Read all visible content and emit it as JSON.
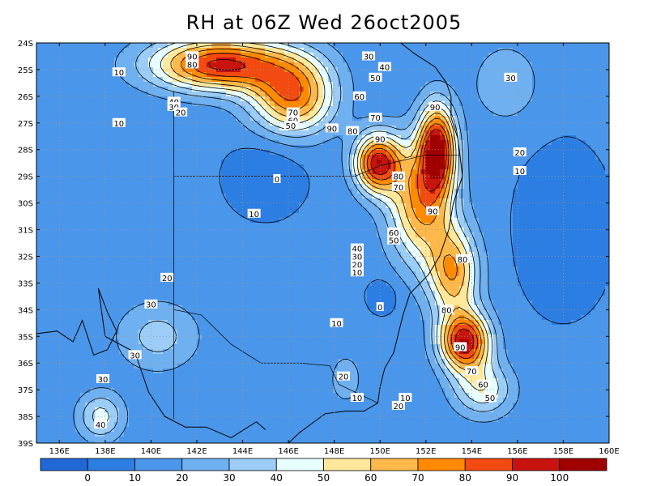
{
  "title": "RH at 06Z Wed 26oct2005",
  "map": {
    "lat_ticks": [
      "24S",
      "25S",
      "26S",
      "27S",
      "28S",
      "29S",
      "30S",
      "31S",
      "32S",
      "33S",
      "34S",
      "35S",
      "36S",
      "37S",
      "38S",
      "39S"
    ],
    "lon_ticks": [
      "136E",
      "138E",
      "140E",
      "142E",
      "144E",
      "146E",
      "148E",
      "150E",
      "152E",
      "154E",
      "156E",
      "158E",
      "160E"
    ],
    "lat_range": [
      -39,
      -24
    ],
    "lon_range": [
      135,
      160
    ],
    "gridlines": "dotted",
    "contour_interval": 10
  },
  "contour_labels": [
    {
      "text": "90",
      "lon": 141.8,
      "lat": -24.5
    },
    {
      "text": "80",
      "lon": 141.8,
      "lat": -24.8
    },
    {
      "text": "30",
      "lon": 149.5,
      "lat": -24.5
    },
    {
      "text": "10",
      "lon": 138.6,
      "lat": -25.1
    },
    {
      "text": "40",
      "lon": 150.2,
      "lat": -24.9
    },
    {
      "text": "50",
      "lon": 149.8,
      "lat": -25.3
    },
    {
      "text": "30",
      "lon": 155.7,
      "lat": -25.3
    },
    {
      "text": "60",
      "lon": 149.1,
      "lat": -26.0
    },
    {
      "text": "40",
      "lon": 141.0,
      "lat": -26.2
    },
    {
      "text": "30",
      "lon": 141.0,
      "lat": -26.4
    },
    {
      "text": "20",
      "lon": 141.3,
      "lat": -26.6
    },
    {
      "text": "90",
      "lon": 152.4,
      "lat": -26.4
    },
    {
      "text": "70",
      "lon": 146.2,
      "lat": -26.6
    },
    {
      "text": "60",
      "lon": 146.2,
      "lat": -26.9
    },
    {
      "text": "50",
      "lon": 146.1,
      "lat": -27.1
    },
    {
      "text": "70",
      "lon": 149.8,
      "lat": -26.8
    },
    {
      "text": "10",
      "lon": 138.6,
      "lat": -27.0
    },
    {
      "text": "90",
      "lon": 147.9,
      "lat": -27.2
    },
    {
      "text": "80",
      "lon": 148.8,
      "lat": -27.3
    },
    {
      "text": "90",
      "lon": 150.0,
      "lat": -27.6
    },
    {
      "text": "20",
      "lon": 156.1,
      "lat": -28.1
    },
    {
      "text": "10",
      "lon": 156.1,
      "lat": -28.8
    },
    {
      "text": "0",
      "lon": 145.5,
      "lat": -29.1
    },
    {
      "text": "80",
      "lon": 150.8,
      "lat": -29.0
    },
    {
      "text": "70",
      "lon": 150.8,
      "lat": -29.4
    },
    {
      "text": "90",
      "lon": 152.3,
      "lat": -30.3
    },
    {
      "text": "10",
      "lon": 144.5,
      "lat": -30.4
    },
    {
      "text": "60",
      "lon": 150.6,
      "lat": -31.1
    },
    {
      "text": "50",
      "lon": 150.6,
      "lat": -31.4
    },
    {
      "text": "40",
      "lon": 149.0,
      "lat": -31.7
    },
    {
      "text": "30",
      "lon": 149.0,
      "lat": -32.0
    },
    {
      "text": "20",
      "lon": 149.0,
      "lat": -32.3
    },
    {
      "text": "10",
      "lon": 149.0,
      "lat": -32.6
    },
    {
      "text": "80",
      "lon": 153.6,
      "lat": -32.1
    },
    {
      "text": "20",
      "lon": 140.7,
      "lat": -32.8
    },
    {
      "text": "0",
      "lon": 150.0,
      "lat": -33.9
    },
    {
      "text": "30",
      "lon": 140.0,
      "lat": -33.8
    },
    {
      "text": "80",
      "lon": 152.9,
      "lat": -34.0
    },
    {
      "text": "10",
      "lon": 148.1,
      "lat": -34.5
    },
    {
      "text": "90",
      "lon": 153.5,
      "lat": -35.4
    },
    {
      "text": "30",
      "lon": 139.3,
      "lat": -35.7
    },
    {
      "text": "70",
      "lon": 154.0,
      "lat": -36.3
    },
    {
      "text": "20",
      "lon": 148.4,
      "lat": -36.5
    },
    {
      "text": "30",
      "lon": 137.9,
      "lat": -36.6
    },
    {
      "text": "60",
      "lon": 154.5,
      "lat": -36.8
    },
    {
      "text": "10",
      "lon": 151.1,
      "lat": -37.3
    },
    {
      "text": "10",
      "lon": 149.0,
      "lat": -37.3
    },
    {
      "text": "50",
      "lon": 154.8,
      "lat": -37.3
    },
    {
      "text": "20",
      "lon": 150.8,
      "lat": -37.6
    },
    {
      "text": "40",
      "lon": 137.8,
      "lat": -38.3
    }
  ],
  "colorbar": {
    "labels": [
      "0",
      "10",
      "20",
      "30",
      "40",
      "50",
      "60",
      "70",
      "80",
      "90",
      "100"
    ],
    "colors": [
      "#1f68d6",
      "#2d7ee3",
      "#4a96ea",
      "#6fb0f0",
      "#9bcdf7",
      "#e8ffff",
      "#ffe89c",
      "#ffb84a",
      "#ff8a00",
      "#f24a10",
      "#c8130f",
      "#a00000"
    ]
  }
}
